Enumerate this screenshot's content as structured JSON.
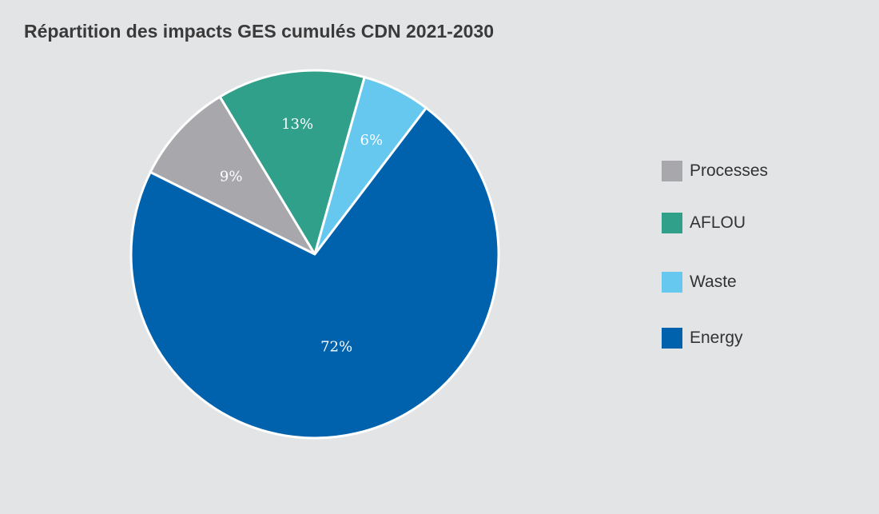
{
  "chart_data": {
    "type": "pie",
    "title": "Répartition des impacts GES cumulés CDN 2021-2030",
    "slices": [
      {
        "name": "Processes",
        "value": 9,
        "label": "9%",
        "color": "#a8a7ab"
      },
      {
        "name": "AFLOU",
        "value": 13,
        "label": "13%",
        "color": "#30a08a"
      },
      {
        "name": "Waste",
        "value": 6,
        "label": "6%",
        "color": "#66c8ee"
      },
      {
        "name": "Energy",
        "value": 72,
        "label": "72%",
        "color": "#0062ad"
      }
    ],
    "legend_position": "right"
  }
}
